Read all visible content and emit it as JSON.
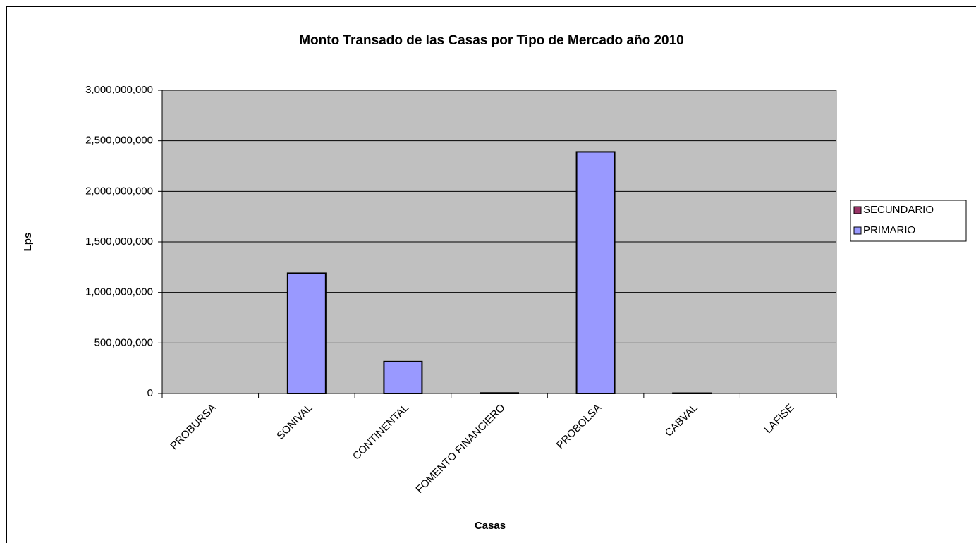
{
  "chart_data": {
    "type": "bar",
    "stacked": true,
    "title": "Monto Transado de las Casas por Tipo de Mercado año 2010",
    "x_label": "Casas",
    "y_label": "Lps",
    "categories": [
      "PROBURSA",
      "SONIVAL",
      "CONTINENTAL",
      "FOMENTO FINANCIERO",
      "PROBOLSA",
      "CABVAL",
      "LAFISE"
    ],
    "series": [
      {
        "name": "PRIMARIO",
        "color": "#9999ff",
        "values": [
          0,
          1190000000,
          315000000,
          5000000,
          2390000000,
          3000000,
          0
        ]
      },
      {
        "name": "SECUNDARIO",
        "color": "#993366",
        "values": [
          0,
          0,
          0,
          0,
          0,
          0,
          0
        ]
      }
    ],
    "legend_order": [
      1,
      0
    ],
    "ylim": [
      0,
      3000000000
    ],
    "yticks": [
      0,
      {
        "value": 500000000,
        "label": "500,000,000"
      },
      {
        "value": 1000000000,
        "label": "1,000,000,000"
      },
      {
        "value": 1500000000,
        "label": "1,500,000,000"
      },
      {
        "value": 2000000000,
        "label": "2,000,000,000"
      },
      {
        "value": 2500000000,
        "label": "2,500,000,000"
      },
      {
        "value": 3000000000,
        "label": "3,000,000,000"
      }
    ],
    "grid": true,
    "legend": "right",
    "plot_background": "#c0c0c0"
  }
}
